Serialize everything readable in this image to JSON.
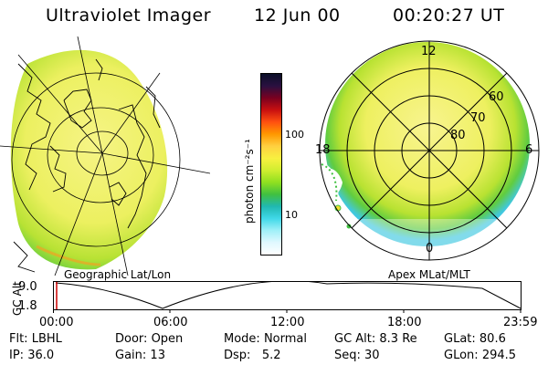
{
  "header": {
    "title": "Ultraviolet Imager",
    "date": "12 Jun 00",
    "time": "00:20:27 UT"
  },
  "left_panel": {
    "caption": "Geographic Lat/Lon"
  },
  "right_panel": {
    "caption": "Apex MLat/MLT",
    "mlt_labels": {
      "top": "12",
      "left": "18",
      "right": "6",
      "bottom": "0"
    },
    "lat_labels": [
      "60",
      "70",
      "80"
    ]
  },
  "colorbar": {
    "label": "photon cm⁻²s⁻¹",
    "ticks": [
      "100",
      "10"
    ],
    "colors": [
      "#0a0f28",
      "#2a1040",
      "#7a0020",
      "#c81010",
      "#ff5010",
      "#ff9800",
      "#ffd040",
      "#f8f040",
      "#d0ee30",
      "#90e020",
      "#40c040",
      "#20b8b0",
      "#40d8e8",
      "#a0f0f8",
      "#e0f8ff",
      "#ffffff"
    ]
  },
  "altitude_plot": {
    "ylabel": "GC Alt",
    "yticks": [
      "9.0",
      "1.8"
    ],
    "xticks": [
      "00:00",
      "06:00",
      "12:00",
      "18:00",
      "23:59"
    ]
  },
  "info": {
    "row1": [
      {
        "label": "Flt:",
        "value": "LBHL"
      },
      {
        "label": "Door:",
        "value": "Open"
      },
      {
        "label": "Mode:",
        "value": "Normal"
      },
      {
        "label": "GC Alt:",
        "value": "8.3 Re"
      },
      {
        "label": "GLat:",
        "value": "80.6"
      }
    ],
    "row2": [
      {
        "label": "IP:",
        "value": "36.0"
      },
      {
        "label": "Gain:",
        "value": "13"
      },
      {
        "label": "Dsp:",
        "value": "5.2"
      },
      {
        "label": "Seq:",
        "value": "30"
      },
      {
        "label": "GLon:",
        "value": "294.5"
      }
    ]
  },
  "colors": {
    "green": "#7ed428",
    "yellow": "#f4f27a",
    "cyan": "#38c8e8",
    "line": "#000000"
  }
}
